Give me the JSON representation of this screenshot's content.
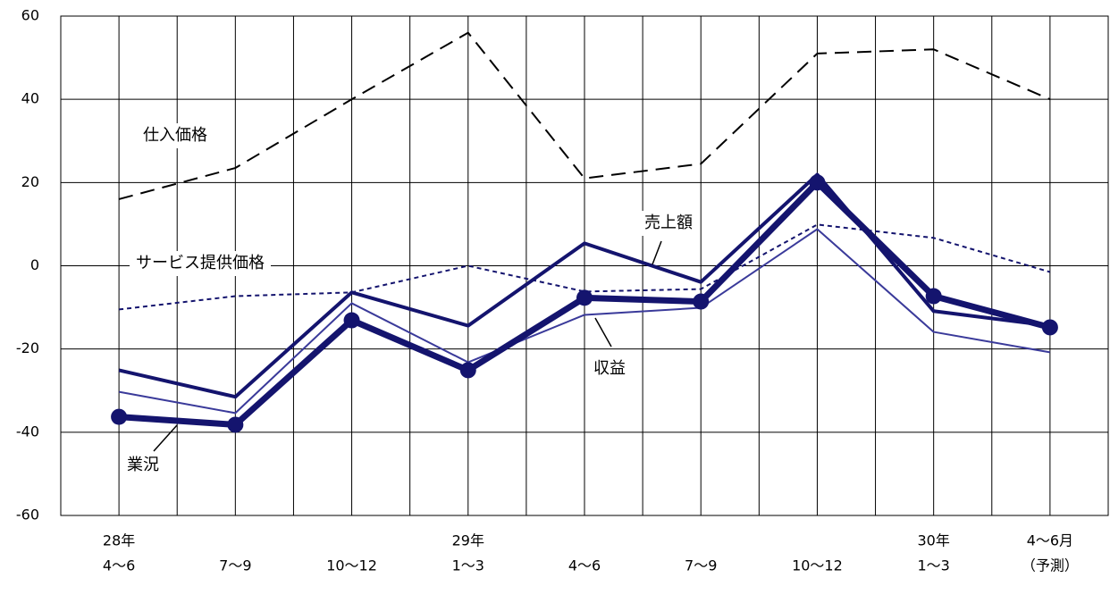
{
  "chart_data": {
    "type": "line",
    "categories": [
      [
        "28年",
        "4～6"
      ],
      [
        "7～9"
      ],
      [
        "10～12"
      ],
      [
        "29年",
        "1～3"
      ],
      [
        "4～6"
      ],
      [
        "7～9"
      ],
      [
        "10～12"
      ],
      [
        "30年",
        "1～3"
      ],
      [
        "4～6月",
        "（予測）"
      ]
    ],
    "series": [
      {
        "name": "仕入価格",
        "color": "#000000",
        "values": [
          16,
          23.5,
          40,
          56,
          21,
          24.5,
          51,
          52,
          40
        ]
      },
      {
        "name": "サービス提供価格",
        "color": "#14146e",
        "values": [
          -10.5,
          -7.3,
          -6.4,
          0,
          -6.2,
          -5.6,
          9.9,
          6.7,
          -1.5
        ]
      },
      {
        "name": "売上額",
        "color": "#14146e",
        "values": [
          -25.1,
          -31.5,
          -6.4,
          -14.4,
          5.4,
          -3.9,
          21.9,
          -10.9,
          -14.4
        ]
      },
      {
        "name": "収益",
        "color": "#3a3a9a",
        "values": [
          -30.3,
          -35.4,
          -9,
          -23.2,
          -11.8,
          -10.1,
          8.8,
          -15.9,
          -20.8
        ]
      },
      {
        "name": "業況",
        "color": "#14146e",
        "values": [
          -36.3,
          -38.2,
          -13.1,
          -25.1,
          -7.7,
          -8.6,
          20,
          -7.3,
          -14.8
        ]
      }
    ],
    "ylim": [
      -60,
      60
    ],
    "yticks": [
      -60,
      -40,
      -20,
      0,
      20,
      40,
      60
    ],
    "grid": true
  }
}
